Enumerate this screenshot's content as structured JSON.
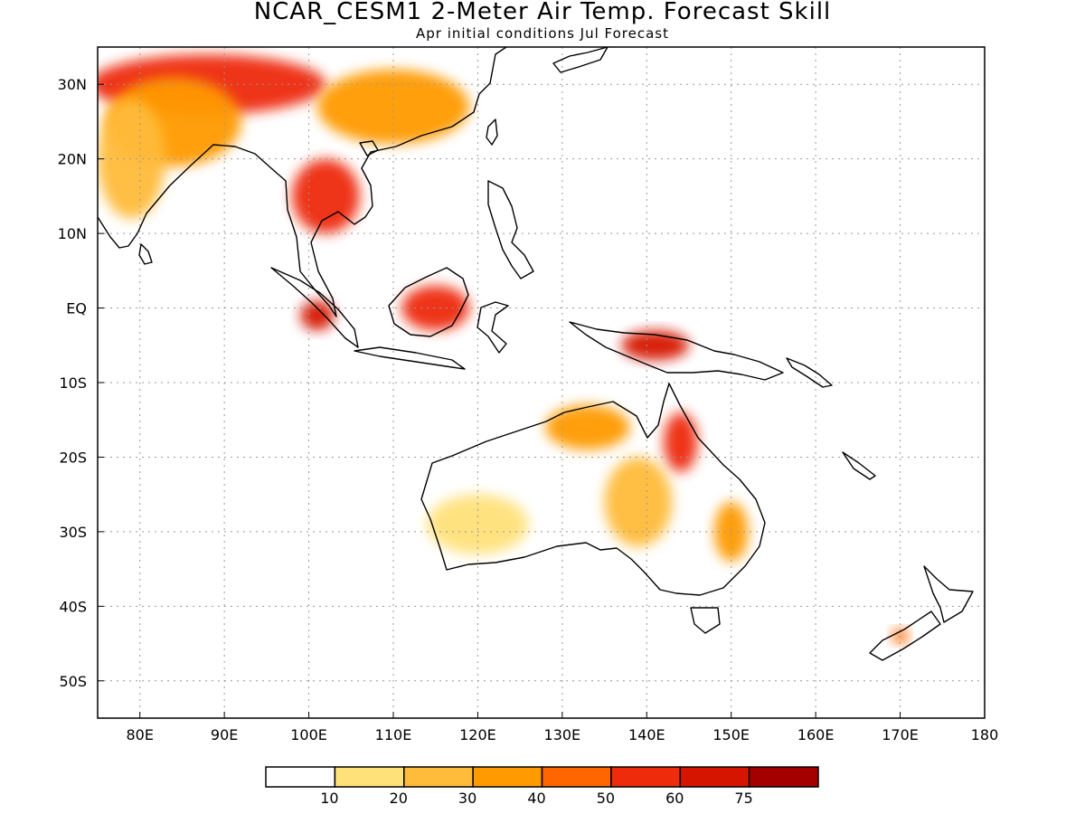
{
  "title": "NCAR_CESM1 2-Meter Air Temp. Forecast Skill",
  "subtitle": "Apr initial conditions  Jul Forecast",
  "map": {
    "lon_range": [
      75,
      180
    ],
    "lat_range": [
      -55,
      35
    ],
    "x_ticks": [
      "80E",
      "90E",
      "100E",
      "110E",
      "120E",
      "130E",
      "140E",
      "150E",
      "160E",
      "170E",
      "180"
    ],
    "x_tick_values": [
      80,
      90,
      100,
      110,
      120,
      130,
      140,
      150,
      160,
      170,
      180
    ],
    "y_ticks": [
      "30N",
      "20N",
      "10N",
      "EQ",
      "10S",
      "20S",
      "30S",
      "40S",
      "50S"
    ],
    "y_tick_values": [
      30,
      20,
      10,
      0,
      -10,
      -20,
      -30,
      -40,
      -50
    ],
    "grid": true
  },
  "colorbar": {
    "labels": [
      "10",
      "20",
      "30",
      "40",
      "50",
      "60",
      "75"
    ],
    "colors": [
      "#ffffff",
      "#ffe17a",
      "#ffbb3a",
      "#ff9a00",
      "#ff6600",
      "#ee2c0c",
      "#d51500",
      "#a50000"
    ]
  },
  "skill_regions": [
    {
      "name": "tibet-china",
      "lon": 88,
      "lat": 30,
      "rx": 14,
      "ry": 4,
      "level": 5
    },
    {
      "name": "north-india",
      "lon": 84,
      "lat": 25,
      "rx": 8,
      "ry": 6,
      "level": 3
    },
    {
      "name": "india-west",
      "lon": 79,
      "lat": 20,
      "rx": 4,
      "ry": 8,
      "level": 2
    },
    {
      "name": "china-east",
      "lon": 110,
      "lat": 27,
      "rx": 9,
      "ry": 5,
      "level": 3
    },
    {
      "name": "indochina",
      "lon": 102,
      "lat": 15,
      "rx": 4,
      "ry": 5,
      "level": 5
    },
    {
      "name": "sumatra",
      "lon": 101,
      "lat": -1,
      "rx": 2,
      "ry": 2,
      "level": 6
    },
    {
      "name": "borneo",
      "lon": 115,
      "lat": 0,
      "rx": 4,
      "ry": 3,
      "level": 5
    },
    {
      "name": "new-guinea",
      "lon": 141,
      "lat": -5,
      "rx": 4,
      "ry": 2,
      "level": 6
    },
    {
      "name": "n-australia",
      "lon": 133,
      "lat": -16,
      "rx": 5,
      "ry": 3,
      "level": 3
    },
    {
      "name": "queensland",
      "lon": 144,
      "lat": -18,
      "rx": 2,
      "ry": 4,
      "level": 5
    },
    {
      "name": "central-australia",
      "lon": 139,
      "lat": -26,
      "rx": 4,
      "ry": 6,
      "level": 2
    },
    {
      "name": "sw-australia",
      "lon": 120,
      "lat": -29,
      "rx": 6,
      "ry": 4,
      "level": 1
    },
    {
      "name": "se-australia",
      "lon": 150,
      "lat": -30,
      "rx": 2,
      "ry": 4,
      "level": 3
    },
    {
      "name": "new-zealand",
      "lon": 170,
      "lat": -44,
      "rx": 1,
      "ry": 1,
      "level": 4
    }
  ]
}
